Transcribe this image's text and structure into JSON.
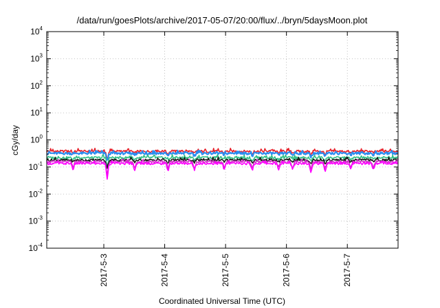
{
  "chart_data": {
    "type": "line",
    "title": "/data/run/goesPlots/archive/2017-05-07/20:00/flux/../bryn/5daysMoon.plot",
    "xlabel": "Coordinated Universal Time (UTC)",
    "ylabel": "cGy/day",
    "y_scale": "log",
    "ylim": [
      0.0001,
      10000
    ],
    "y_ticks": [
      {
        "value": 0.0001,
        "base": "10",
        "exp": "-4"
      },
      {
        "value": 0.001,
        "base": "10",
        "exp": "-3"
      },
      {
        "value": 0.01,
        "base": "10",
        "exp": "-2"
      },
      {
        "value": 0.1,
        "base": "10",
        "exp": "-1"
      },
      {
        "value": 1,
        "base": "10",
        "exp": "0"
      },
      {
        "value": 10,
        "base": "10",
        "exp": "1"
      },
      {
        "value": 100,
        "base": "10",
        "exp": "2"
      },
      {
        "value": 1000,
        "base": "10",
        "exp": "3"
      },
      {
        "value": 10000,
        "base": "10",
        "exp": "4"
      }
    ],
    "xlim": [
      "2017-05-02 01:30",
      "2017-05-07 20:00"
    ],
    "x_ticks": [
      {
        "value": "2017-05-03 00:00",
        "label": "2017-5-3"
      },
      {
        "value": "2017-05-04 00:00",
        "label": "2017-5-4"
      },
      {
        "value": "2017-05-05 00:00",
        "label": "2017-5-5"
      },
      {
        "value": "2017-05-06 00:00",
        "label": "2017-5-6"
      },
      {
        "value": "2017-05-07 00:00",
        "label": "2017-5-7"
      }
    ],
    "grid": true,
    "legend": "none",
    "series": [
      {
        "color": "#e8202a",
        "base": 0.38
      },
      {
        "color": "#2a8cf0",
        "base": 0.32
      },
      {
        "color": "#2fbf87",
        "base": 0.22
      },
      {
        "color": "#1a1a1a",
        "base": 0.18
      },
      {
        "color": "#d12fc9",
        "base": 0.155
      },
      {
        "color": "#ff00ff",
        "base": 0.135
      }
    ]
  }
}
